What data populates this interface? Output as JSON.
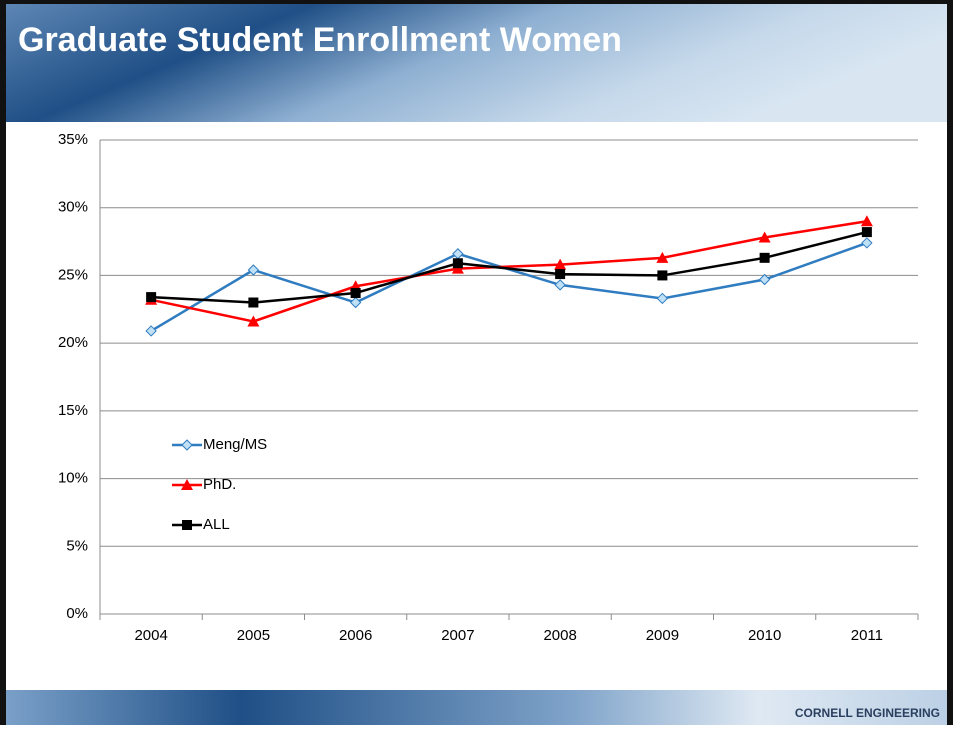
{
  "chart_data": {
    "type": "line",
    "title": "Graduate Student Enrollment Women",
    "footer": "CORNELL ENGINEERING",
    "categories": [
      "2004",
      "2005",
      "2006",
      "2007",
      "2008",
      "2009",
      "2010",
      "2011"
    ],
    "series": [
      {
        "name": "Meng/MS",
        "color": "#2f7cc0",
        "marker": "diamond",
        "values": [
          20.9,
          25.4,
          23.0,
          26.6,
          24.3,
          23.3,
          24.7,
          27.4
        ]
      },
      {
        "name": "PhD.",
        "color": "#ff0000",
        "marker": "triangle",
        "values": [
          23.2,
          21.6,
          24.2,
          25.5,
          25.8,
          26.3,
          27.8,
          29.0
        ]
      },
      {
        "name": "ALL",
        "color": "#000000",
        "marker": "square",
        "values": [
          23.4,
          23.0,
          23.7,
          25.9,
          25.1,
          25.0,
          26.3,
          28.2
        ]
      }
    ],
    "ylim": [
      0,
      35
    ],
    "yticks": [
      {
        "value": 0,
        "label": "0%"
      },
      {
        "value": 5,
        "label": "5%"
      },
      {
        "value": 10,
        "label": "10%"
      },
      {
        "value": 15,
        "label": "15%"
      },
      {
        "value": 20,
        "label": "20%"
      },
      {
        "value": 25,
        "label": "25%"
      },
      {
        "value": 30,
        "label": "30%"
      },
      {
        "value": 35,
        "label": "35%"
      }
    ],
    "grid": true,
    "legend_position": "left"
  }
}
